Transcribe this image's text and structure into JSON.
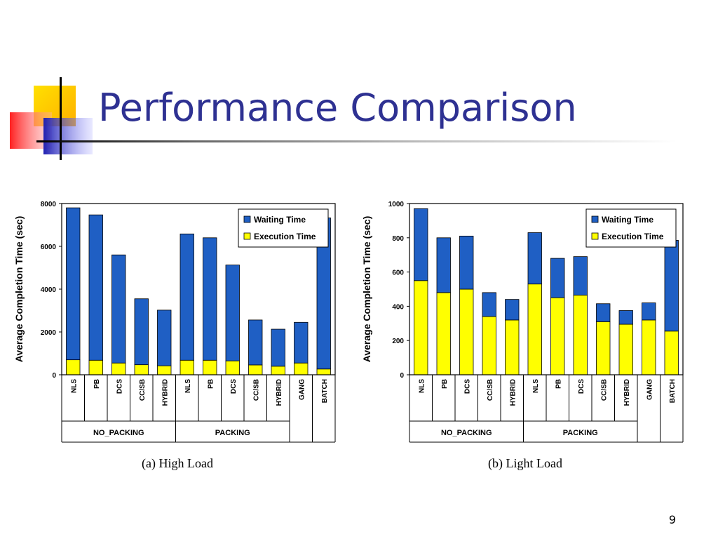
{
  "slide": {
    "title": "Performance Comparison",
    "page_number": "9"
  },
  "colors": {
    "title": "#2e3192",
    "waiting": "#1f5fc4",
    "execution": "#ffff00",
    "logo_yellow": "#ffd700",
    "logo_red": "#ff3b3b",
    "logo_blue": "#3030c0"
  },
  "chart_data": [
    {
      "type": "bar",
      "stacked": true,
      "caption": "(a) High Load",
      "ylabel": "Average Completion Time (sec)",
      "ylim": [
        0,
        8000
      ],
      "yticks": [
        "0",
        "2000",
        "4000",
        "6000",
        "8000"
      ],
      "categories": [
        "NLS",
        "PB",
        "DCS",
        "CC/SB",
        "HYBRID",
        "NLS",
        "PB",
        "DCS",
        "CC/SB",
        "HYBRID",
        "GANG",
        "BATCH"
      ],
      "groups": [
        {
          "label": "NO_PACKING",
          "start": 0,
          "end": 4
        },
        {
          "label": "PACKING",
          "start": 5,
          "end": 9
        },
        {
          "label": "",
          "start": 10,
          "end": 10
        },
        {
          "label": "",
          "start": 11,
          "end": 11
        }
      ],
      "legend": {
        "position": "top-right",
        "entries": [
          "Waiting Time",
          "Execution Time"
        ]
      },
      "series": [
        {
          "name": "Execution Time",
          "values": [
            700,
            680,
            550,
            470,
            420,
            680,
            680,
            650,
            460,
            400,
            550,
            270
          ]
        },
        {
          "name": "Waiting Time",
          "values": [
            7100,
            6790,
            5050,
            3080,
            2600,
            5900,
            5720,
            4480,
            2100,
            1730,
            1900,
            7060
          ]
        }
      ]
    },
    {
      "type": "bar",
      "stacked": true,
      "caption": "(b) Light Load",
      "ylabel": "Average Completion Time (sec)",
      "ylim": [
        0,
        1000
      ],
      "yticks": [
        "0",
        "200",
        "400",
        "600",
        "800",
        "1000"
      ],
      "categories": [
        "NLS",
        "PB",
        "DCS",
        "CC/SB",
        "HYBRID",
        "NLS",
        "PB",
        "DCS",
        "CC/SB",
        "HYBRID",
        "GANG",
        "BATCH"
      ],
      "groups": [
        {
          "label": "NO_PACKING",
          "start": 0,
          "end": 4
        },
        {
          "label": "PACKING",
          "start": 5,
          "end": 9
        },
        {
          "label": "",
          "start": 10,
          "end": 10
        },
        {
          "label": "",
          "start": 11,
          "end": 11
        }
      ],
      "legend": {
        "position": "top-right",
        "entries": [
          "Waiting Time",
          "Execution Time"
        ]
      },
      "series": [
        {
          "name": "Execution Time",
          "values": [
            550,
            480,
            500,
            340,
            320,
            530,
            450,
            465,
            310,
            295,
            320,
            255
          ]
        },
        {
          "name": "Waiting Time",
          "values": [
            420,
            320,
            310,
            140,
            120,
            300,
            230,
            225,
            105,
            80,
            100,
            530
          ]
        }
      ]
    }
  ]
}
